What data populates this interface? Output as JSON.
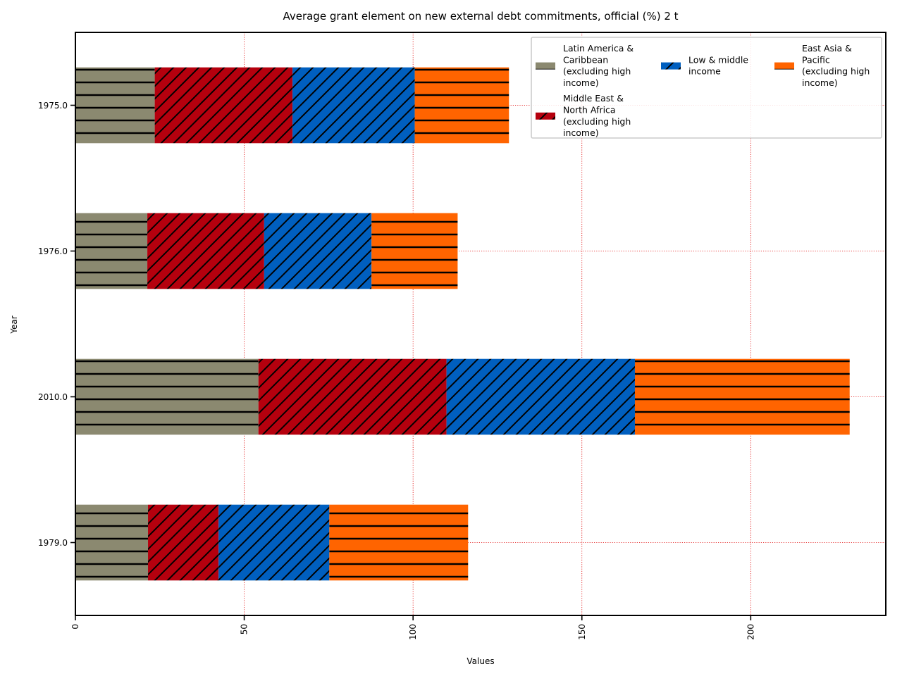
{
  "chart_data": {
    "type": "bar",
    "orientation": "horizontal",
    "stacked": true,
    "title": "Average grant element on new external debt commitments, official (%) 2 t",
    "xlabel": "Values",
    "ylabel": "Year",
    "categories": [
      "1975.0",
      "1976.0",
      "2010.0",
      "1979.0"
    ],
    "xlim": [
      0,
      240
    ],
    "xticks": [
      0,
      50,
      100,
      150,
      200
    ],
    "grid": true,
    "legend_position": "top-right",
    "legend_columns": 3,
    "series": [
      {
        "name": "Latin America & Caribbean (excluding high income)",
        "values": [
          23.5,
          21.3,
          54.2,
          21.5
        ],
        "color": "#8b8970",
        "hatch": "horizontal"
      },
      {
        "name": "Middle East & North Africa (excluding high income)",
        "values": [
          40.8,
          34.6,
          55.7,
          20.9
        ],
        "color": "#b5000e",
        "hatch": "diagonal"
      },
      {
        "name": "Low & middle income",
        "values": [
          36.2,
          31.8,
          55.8,
          32.8
        ],
        "color": "#005fbf",
        "hatch": "diagonal"
      },
      {
        "name": "East Asia & Pacific (excluding high income)",
        "values": [
          27.9,
          25.5,
          63.6,
          41.1
        ],
        "color": "#ff6400",
        "hatch": "horizontal"
      }
    ]
  }
}
